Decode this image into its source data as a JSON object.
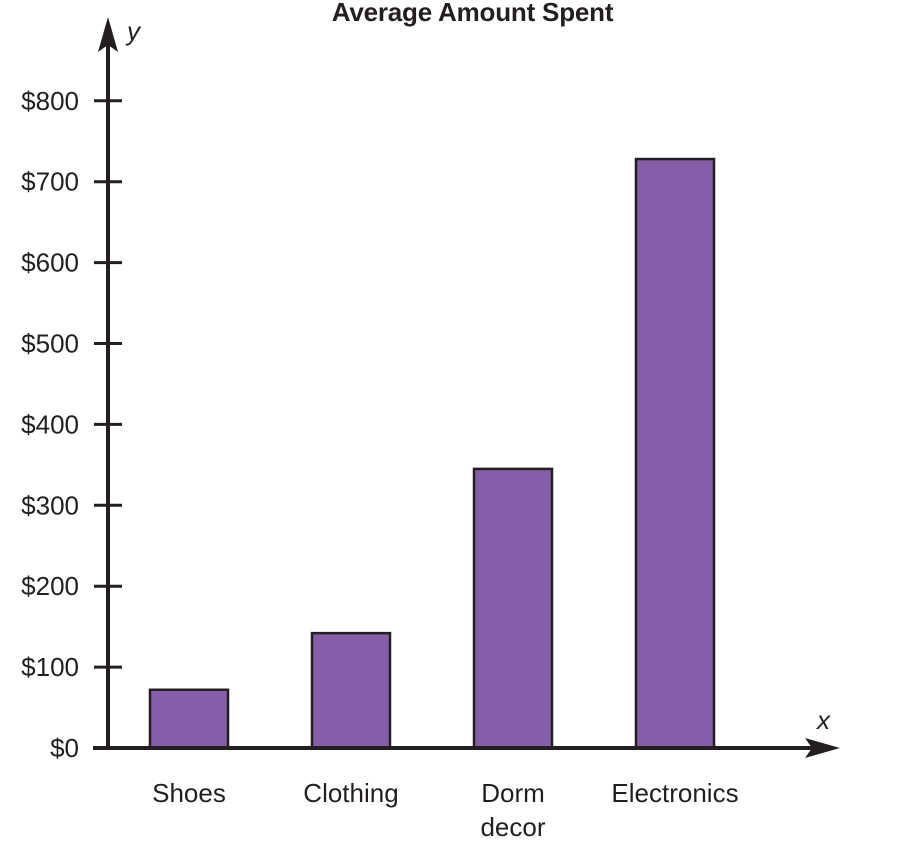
{
  "chart_data": {
    "type": "bar",
    "title": "Average Amount Spent",
    "xlabel": "x",
    "ylabel": "y",
    "categories": [
      "Shoes",
      "Clothing",
      "Dorm decor",
      "Electronics"
    ],
    "category_lines": [
      [
        "Shoes"
      ],
      [
        "Clothing"
      ],
      [
        "Dorm",
        "decor"
      ],
      [
        "Electronics"
      ]
    ],
    "values": [
      72,
      142,
      345,
      728
    ],
    "ylim": [
      0,
      800
    ],
    "yticks": [
      0,
      100,
      200,
      300,
      400,
      500,
      600,
      700,
      800
    ],
    "ytick_labels": [
      "$0",
      "$100",
      "$200",
      "$300",
      "$400",
      "$500",
      "$600",
      "$700",
      "$800"
    ],
    "grid": false,
    "colors": {
      "bar_fill": "#845ea9",
      "bar_stroke": "#231f20",
      "axis": "#231f20",
      "text": "#231f20"
    }
  }
}
